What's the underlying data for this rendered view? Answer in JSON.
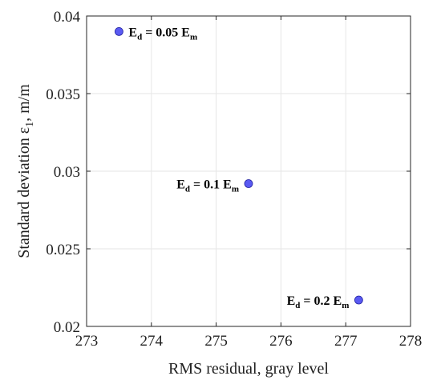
{
  "chart_data": {
    "type": "scatter",
    "xlabel": "RMS residual, gray level",
    "ylabel_main": "Standard deviation ",
    "ylabel_symbol": "ε",
    "ylabel_sub": "1",
    "ylabel_unit": ", m/m",
    "xlim": [
      273,
      278
    ],
    "ylim": [
      0.02,
      0.04
    ],
    "x_ticks": [
      273,
      274,
      275,
      276,
      277,
      278
    ],
    "x_tick_labels": [
      "273",
      "274",
      "275",
      "276",
      "277",
      "278"
    ],
    "y_ticks": [
      0.02,
      0.025,
      0.03,
      0.035,
      0.04
    ],
    "y_tick_labels": [
      "0.02",
      "0.025",
      "0.03",
      "0.035",
      "0.04"
    ],
    "grid": true,
    "marker_color": "#5a5af2",
    "marker_edge_color": "#2020a0",
    "points": [
      {
        "x": 273.5,
        "y": 0.039,
        "label": {
          "pre": "E",
          "pre_sub": "d",
          "mid": " = 0.05 E",
          "post_sub": "m",
          "side": "right"
        }
      },
      {
        "x": 275.5,
        "y": 0.0292,
        "label": {
          "pre": "E",
          "pre_sub": "d",
          "mid": " = 0.1 E",
          "post_sub": "m",
          "side": "left"
        }
      },
      {
        "x": 277.2,
        "y": 0.0217,
        "label": {
          "pre": "E",
          "pre_sub": "d",
          "mid": " = 0.2 E",
          "post_sub": "m",
          "side": "left"
        }
      }
    ]
  }
}
